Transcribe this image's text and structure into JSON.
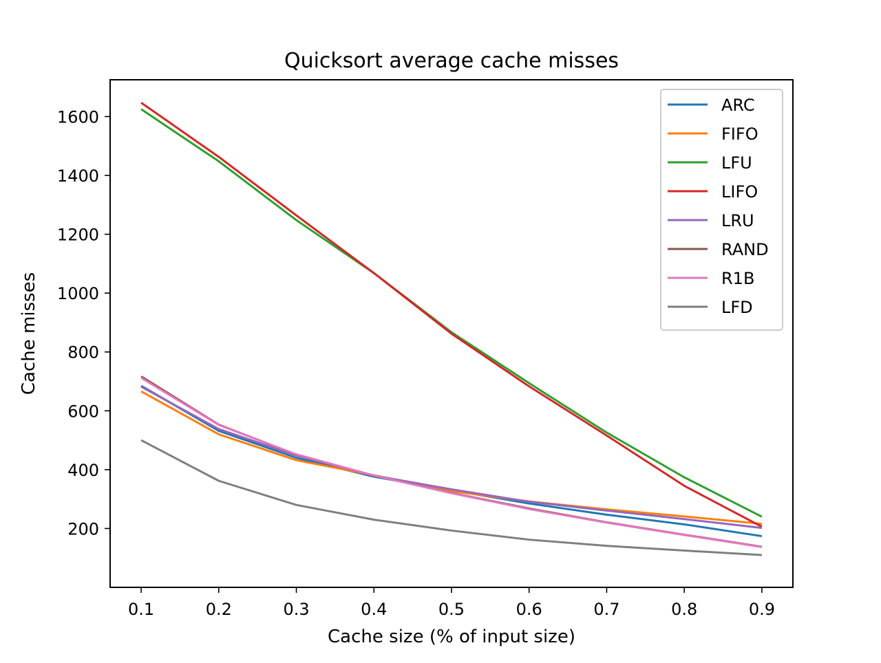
{
  "chart_data": {
    "type": "line",
    "title": "Quicksort average cache misses",
    "xlabel": "Cache size (% of input size)",
    "ylabel": "Cache misses",
    "xlim": [
      0.06,
      0.94
    ],
    "ylim": [
      0,
      1725
    ],
    "xticks": [
      {
        "value": 0.1,
        "label": "0.1"
      },
      {
        "value": 0.2,
        "label": "0.2"
      },
      {
        "value": 0.3,
        "label": "0.3"
      },
      {
        "value": 0.4,
        "label": "0.4"
      },
      {
        "value": 0.5,
        "label": "0.5"
      },
      {
        "value": 0.6,
        "label": "0.6"
      },
      {
        "value": 0.7,
        "label": "0.7"
      },
      {
        "value": 0.8,
        "label": "0.8"
      },
      {
        "value": 0.9,
        "label": "0.9"
      }
    ],
    "yticks": [
      {
        "value": 200,
        "label": "200"
      },
      {
        "value": 400,
        "label": "400"
      },
      {
        "value": 600,
        "label": "600"
      },
      {
        "value": 800,
        "label": "800"
      },
      {
        "value": 1000,
        "label": "1000"
      },
      {
        "value": 1200,
        "label": "1200"
      },
      {
        "value": 1400,
        "label": "1400"
      },
      {
        "value": 1600,
        "label": "1600"
      }
    ],
    "grid": false,
    "legend_position": "top-right",
    "x": [
      0.1,
      0.2,
      0.3,
      0.4,
      0.5,
      0.6,
      0.7,
      0.8,
      0.9
    ],
    "series": [
      {
        "name": "ARC",
        "color": "#1f77b4",
        "values": [
          685,
          532,
          440,
          376,
          330,
          285,
          247,
          214,
          174
        ]
      },
      {
        "name": "FIFO",
        "color": "#ff7f0e",
        "values": [
          666,
          520,
          432,
          381,
          327,
          292,
          265,
          241,
          216
        ]
      },
      {
        "name": "LFU",
        "color": "#2ca02c",
        "values": [
          1625,
          1448,
          1248,
          1068,
          867,
          694,
          526,
          374,
          240
        ]
      },
      {
        "name": "LIFO",
        "color": "#d62728",
        "values": [
          1647,
          1463,
          1264,
          1068,
          862,
          683,
          516,
          345,
          206
        ]
      },
      {
        "name": "LRU",
        "color": "#9467bd",
        "values": [
          682,
          538,
          448,
          380,
          333,
          291,
          261,
          232,
          202
        ]
      },
      {
        "name": "RAND",
        "color": "#8c564b",
        "values": [
          717,
          553,
          451,
          380,
          321,
          268,
          221,
          179,
          138
        ]
      },
      {
        "name": "R1B",
        "color": "#e377c2",
        "values": [
          712,
          552,
          452,
          380,
          320,
          266,
          220,
          178,
          137
        ]
      },
      {
        "name": "LFD",
        "color": "#7f7f7f",
        "values": [
          500,
          362,
          280,
          230,
          193,
          162,
          141,
          125,
          110
        ]
      }
    ]
  }
}
